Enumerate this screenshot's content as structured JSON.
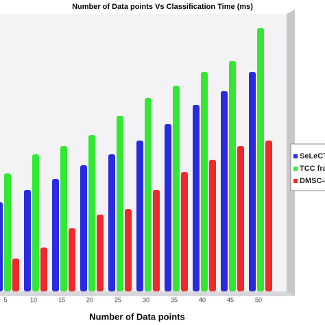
{
  "chart_data": {
    "type": "bar",
    "title": "Number of Data points  Vs Classification Time (ms)",
    "x_label": "Number of Data points",
    "categories": [
      "5",
      "10",
      "15",
      "20",
      "25",
      "30",
      "35",
      "40",
      "45",
      "50"
    ],
    "series": [
      {
        "name": "SeLeCT a",
        "color": "#2a2ae0",
        "values": [
          32.5,
          37,
          41,
          46,
          50,
          55,
          61,
          68,
          73,
          80
        ]
      },
      {
        "name": "TCC fram",
        "color": "#33e833",
        "values": [
          43,
          50,
          53,
          57,
          64,
          70.5,
          75,
          80,
          84,
          96
        ]
      },
      {
        "name": "DMSC-DI",
        "color": "#ee2a2a",
        "values": [
          12,
          16,
          23,
          28,
          30,
          37,
          43.5,
          48,
          53,
          55
        ]
      }
    ],
    "ylim": [
      0,
      100
    ]
  }
}
